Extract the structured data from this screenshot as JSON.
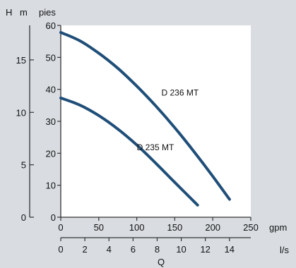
{
  "chart_data": {
    "type": "line",
    "title": "",
    "colors": {
      "background": "#d9dde2",
      "plot_background": "#ffffff",
      "axis": "#333333",
      "series": "#1f4e78"
    },
    "axes": {
      "y_left": {
        "label_h": "H",
        "unit": "m",
        "range": [
          0,
          18.29
        ],
        "ticks": [
          "0",
          "5",
          "10",
          "15"
        ]
      },
      "y_feet": {
        "unit": "pies",
        "range": [
          0,
          60
        ],
        "ticks": [
          "0",
          "10",
          "20",
          "30",
          "40",
          "50",
          "60"
        ]
      },
      "x_gpm": {
        "unit": "gpm",
        "range": [
          0,
          250
        ],
        "ticks": [
          "0",
          "50",
          "100",
          "150",
          "200",
          "250"
        ]
      },
      "x_ls": {
        "unit": "l/s",
        "range": [
          0,
          15.77
        ],
        "ticks": [
          "0",
          "2",
          "4",
          "6",
          "8",
          "10",
          "12",
          "14"
        ]
      },
      "x_label": "Q"
    },
    "series": [
      {
        "name": "D 236 MT",
        "x_gpm": [
          0,
          25,
          50,
          75,
          100,
          125,
          150,
          175,
          200,
          222
        ],
        "y_feet": [
          57.8,
          55.2,
          51.3,
          46.6,
          41.0,
          34.8,
          28.0,
          20.6,
          12.8,
          5.6
        ]
      },
      {
        "name": "D 235 MT",
        "x_gpm": [
          0,
          25,
          50,
          75,
          100,
          125,
          150,
          180
        ],
        "y_feet": [
          37.3,
          35.1,
          31.8,
          27.6,
          22.6,
          16.9,
          10.9,
          3.8
        ]
      }
    ]
  }
}
